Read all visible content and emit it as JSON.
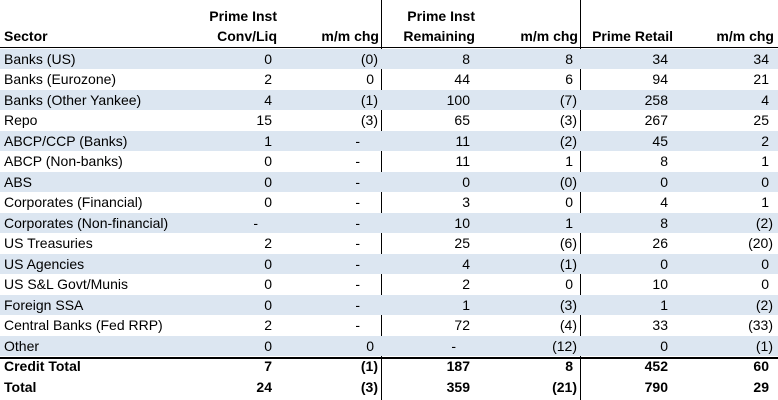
{
  "table": {
    "headers": [
      [
        "Sector"
      ],
      [
        "Prime Inst",
        "Conv/Liq"
      ],
      [
        "m/m chg"
      ],
      [
        "Prime Inst",
        "Remaining"
      ],
      [
        "m/m chg"
      ],
      [
        "Prime Retail"
      ],
      [
        "m/m chg"
      ]
    ],
    "rows": [
      [
        "Banks (US)",
        "0",
        "(0)",
        "8",
        "8",
        "34",
        "34"
      ],
      [
        "Banks (Eurozone)",
        "2",
        "0",
        "44",
        "6",
        "94",
        "21"
      ],
      [
        "Banks (Other Yankee)",
        "4",
        "(1)",
        "100",
        "(7)",
        "258",
        "4"
      ],
      [
        "Repo",
        "15",
        "(3)",
        "65",
        "(3)",
        "267",
        "25"
      ],
      [
        "ABCP/CCP (Banks)",
        "1",
        "-",
        "11",
        "(2)",
        "45",
        "2"
      ],
      [
        "ABCP (Non-banks)",
        "0",
        "-",
        "11",
        "1",
        "8",
        "1"
      ],
      [
        "ABS",
        "0",
        "-",
        "0",
        "(0)",
        "0",
        "0"
      ],
      [
        "Corporates (Financial)",
        "0",
        "-",
        "3",
        "0",
        "4",
        "1"
      ],
      [
        "Corporates (Non-financial)",
        "-",
        "-",
        "10",
        "1",
        "8",
        "(2)"
      ],
      [
        "US Treasuries",
        "2",
        "-",
        "25",
        "(6)",
        "26",
        "(20)"
      ],
      [
        "US Agencies",
        "0",
        "-",
        "4",
        "(1)",
        "0",
        "0"
      ],
      [
        "US S&L Govt/Munis",
        "0",
        "-",
        "2",
        "0",
        "10",
        "0"
      ],
      [
        "Foreign SSA",
        "0",
        "-",
        "1",
        "(3)",
        "1",
        "(2)"
      ],
      [
        "Central Banks (Fed RRP)",
        "2",
        "-",
        "72",
        "(4)",
        "33",
        "(33)"
      ],
      [
        "Other",
        "0",
        "0",
        "-",
        "(12)",
        "0",
        "(1)"
      ]
    ],
    "totals": [
      [
        "Credit Total",
        "7",
        "(1)",
        "187",
        "8",
        "452",
        "60"
      ],
      [
        "Total",
        "24",
        "(3)",
        "359",
        "(21)",
        "790",
        "29"
      ]
    ]
  }
}
